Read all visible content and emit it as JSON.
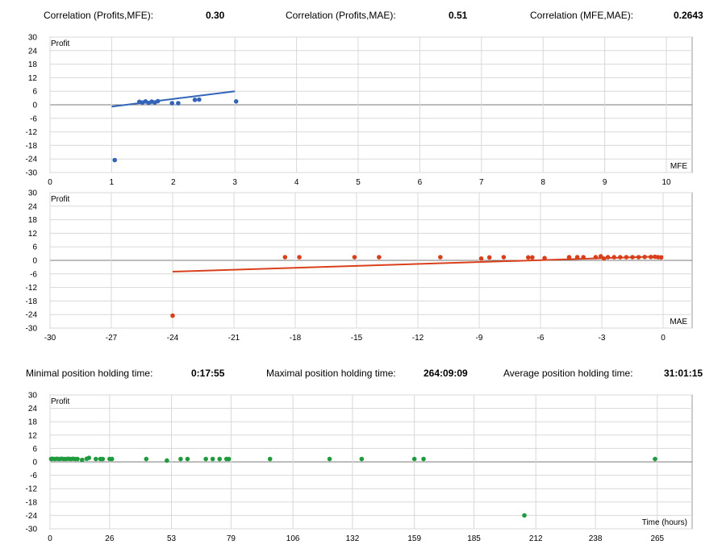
{
  "correlation_stats": [
    {
      "label": "Correlation (Profits,MFE):",
      "value": "0.30"
    },
    {
      "label": "Correlation (Profits,MAE):",
      "value": "0.51"
    },
    {
      "label": "Correlation (MFE,MAE):",
      "value": "0.2643"
    }
  ],
  "holding_stats": [
    {
      "label": "Minimal position holding time:",
      "value": "0:17:55"
    },
    {
      "label": "Maximal position holding time:",
      "value": "264:09:09"
    },
    {
      "label": "Average position holding time:",
      "value": "31:01:15"
    }
  ],
  "colors": {
    "mfe": "#3264b8",
    "mae": "#d8401c",
    "time": "#1f9a3c",
    "grid": "#d8d8d8",
    "axis": "#999999"
  },
  "chart_data": [
    {
      "type": "scatter",
      "ylabel": "Profit",
      "xlabel": "MFE",
      "xlim": [
        0,
        10
      ],
      "ylim": [
        -30,
        30
      ],
      "x_ticks": [
        0,
        1,
        2,
        3,
        4,
        5,
        6,
        7,
        8,
        9,
        10
      ],
      "y_ticks": [
        30,
        24,
        18,
        12,
        6,
        0,
        -6,
        -12,
        -18,
        -24,
        -30
      ],
      "grid": true,
      "points": [
        [
          1.05,
          -24.5
        ],
        [
          1.45,
          1.3
        ],
        [
          1.5,
          1.0
        ],
        [
          1.55,
          1.5
        ],
        [
          1.6,
          0.8
        ],
        [
          1.65,
          1.4
        ],
        [
          1.7,
          1.0
        ],
        [
          1.75,
          1.6
        ],
        [
          1.98,
          0.7
        ],
        [
          2.08,
          0.7
        ],
        [
          2.35,
          2.2
        ],
        [
          2.42,
          2.3
        ],
        [
          3.02,
          1.5
        ]
      ],
      "trend_line": [
        [
          1.0,
          -0.8
        ],
        [
          3.0,
          6.0
        ]
      ]
    },
    {
      "type": "scatter",
      "ylabel": "Profit",
      "xlabel": "MAE",
      "xlim": [
        -30,
        0
      ],
      "ylim": [
        -30,
        30
      ],
      "x_ticks": [
        -30,
        -27,
        -24,
        -21,
        -18,
        -15,
        -12,
        -9,
        -6,
        -3,
        0
      ],
      "y_ticks": [
        30,
        24,
        18,
        12,
        6,
        0,
        -6,
        -12,
        -18,
        -24,
        -30
      ],
      "grid": true,
      "points": [
        [
          -24.0,
          -24.5
        ],
        [
          -18.5,
          1.4
        ],
        [
          -17.8,
          1.4
        ],
        [
          -15.1,
          1.4
        ],
        [
          -13.9,
          1.4
        ],
        [
          -10.9,
          1.4
        ],
        [
          -8.9,
          0.8
        ],
        [
          -8.5,
          1.3
        ],
        [
          -7.8,
          1.4
        ],
        [
          -6.6,
          1.3
        ],
        [
          -6.4,
          1.3
        ],
        [
          -5.8,
          1.0
        ],
        [
          -4.6,
          1.4
        ],
        [
          -4.2,
          1.4
        ],
        [
          -3.9,
          1.4
        ],
        [
          -3.3,
          1.4
        ],
        [
          -3.05,
          1.8
        ],
        [
          -2.9,
          0.8
        ],
        [
          -2.7,
          1.4
        ],
        [
          -2.4,
          1.4
        ],
        [
          -2.1,
          1.4
        ],
        [
          -1.8,
          1.4
        ],
        [
          -1.5,
          1.4
        ],
        [
          -1.2,
          1.4
        ],
        [
          -0.9,
          1.5
        ],
        [
          -0.6,
          1.5
        ],
        [
          -0.4,
          1.6
        ],
        [
          -0.25,
          1.4
        ],
        [
          -0.1,
          1.3
        ]
      ],
      "trend_line": [
        [
          -24.0,
          -5.0
        ],
        [
          0.0,
          1.8
        ]
      ]
    },
    {
      "type": "scatter",
      "ylabel": "Profit",
      "xlabel": "Time (hours)",
      "xlim": [
        0,
        270
      ],
      "ylim": [
        -30,
        30
      ],
      "x_ticks": [
        0,
        26,
        53,
        79,
        106,
        132,
        159,
        185,
        212,
        238,
        265
      ],
      "y_ticks": [
        30,
        24,
        18,
        12,
        6,
        0,
        -6,
        -12,
        -18,
        -24,
        -30
      ],
      "grid": true,
      "points": [
        [
          0.5,
          1.3
        ],
        [
          1,
          1.4
        ],
        [
          2,
          1.3
        ],
        [
          3,
          1.4
        ],
        [
          4,
          1.3
        ],
        [
          5,
          1.4
        ],
        [
          6,
          1.3
        ],
        [
          7,
          1.3
        ],
        [
          8,
          1.4
        ],
        [
          9,
          1.3
        ],
        [
          10,
          1.4
        ],
        [
          11,
          1.3
        ],
        [
          12,
          1.3
        ],
        [
          14,
          0.9
        ],
        [
          16,
          1.4
        ],
        [
          17,
          1.8
        ],
        [
          20,
          1.3
        ],
        [
          22,
          1.3
        ],
        [
          23,
          1.3
        ],
        [
          26,
          1.3
        ],
        [
          27,
          1.3
        ],
        [
          42,
          1.3
        ],
        [
          51,
          0.6
        ],
        [
          57,
          1.3
        ],
        [
          60,
          1.3
        ],
        [
          68,
          1.3
        ],
        [
          71,
          1.3
        ],
        [
          74,
          1.3
        ],
        [
          77,
          1.3
        ],
        [
          78,
          1.3
        ],
        [
          96,
          1.3
        ],
        [
          122,
          1.3
        ],
        [
          136,
          1.3
        ],
        [
          159,
          1.3
        ],
        [
          163,
          1.3
        ],
        [
          207,
          -24.0
        ],
        [
          264,
          1.3
        ]
      ]
    }
  ]
}
